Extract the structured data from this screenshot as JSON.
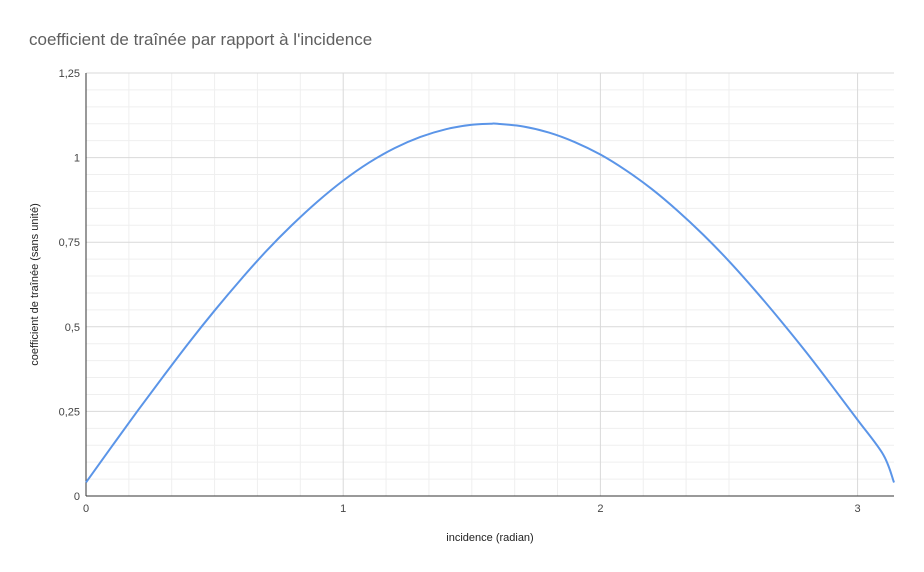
{
  "chart_data": {
    "type": "line",
    "title": "coefficient de traînée par rapport à l'incidence",
    "xlabel": "incidence (radian)",
    "ylabel": "coefficient de traînée (sans unité)",
    "xlim": [
      0,
      3.1416
    ],
    "ylim": [
      0,
      1.25
    ],
    "x_ticks": [
      0,
      1,
      2,
      3
    ],
    "x_tick_labels": [
      "0",
      "1",
      "2",
      "3"
    ],
    "y_ticks": [
      0,
      0.25,
      0.5,
      0.75,
      1,
      1.25
    ],
    "y_tick_labels": [
      "0",
      "0,25",
      "0,5",
      "0,75",
      "1",
      "1,25"
    ],
    "grid": true,
    "line_color": "#5b95e8",
    "series": [
      {
        "x": [
          0,
          0.1,
          0.2,
          0.3,
          0.4,
          0.5,
          0.6,
          0.7,
          0.8,
          0.9,
          1.0,
          1.1,
          1.2,
          1.3,
          1.4,
          1.5,
          1.5708,
          1.6,
          1.7,
          1.8,
          1.9,
          2.0,
          2.1,
          2.2,
          2.3,
          2.4,
          2.5,
          2.6,
          2.7,
          2.8,
          2.9,
          3.0,
          3.1,
          3.1416
        ],
        "y": [
          0.04,
          0.146,
          0.251,
          0.353,
          0.453,
          0.548,
          0.638,
          0.723,
          0.8,
          0.87,
          0.932,
          0.985,
          1.028,
          1.061,
          1.084,
          1.097,
          1.1,
          1.1,
          1.092,
          1.074,
          1.046,
          1.009,
          0.962,
          0.907,
          0.843,
          0.772,
          0.694,
          0.609,
          0.519,
          0.425,
          0.326,
          0.225,
          0.122,
          0.04
        ]
      }
    ]
  }
}
